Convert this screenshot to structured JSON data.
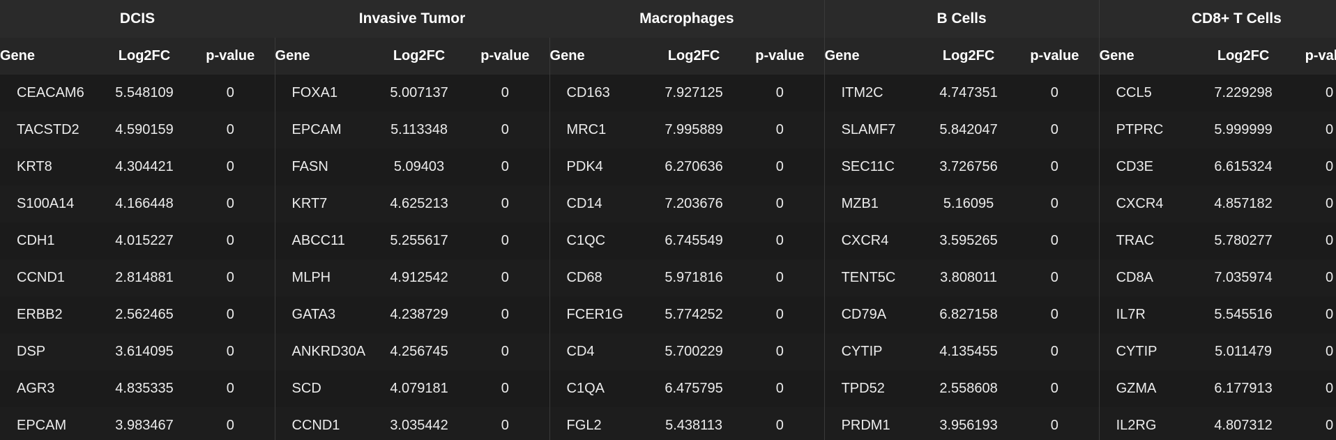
{
  "column_labels": {
    "gene": "Gene",
    "log2fc": "Log2FC",
    "pvalue": "p-value"
  },
  "groups": [
    {
      "name": "DCIS",
      "rows": [
        {
          "gene": "CEACAM6",
          "log2fc": "5.548109",
          "pvalue": "0"
        },
        {
          "gene": "TACSTD2",
          "log2fc": "4.590159",
          "pvalue": "0"
        },
        {
          "gene": "KRT8",
          "log2fc": "4.304421",
          "pvalue": "0"
        },
        {
          "gene": "S100A14",
          "log2fc": "4.166448",
          "pvalue": "0"
        },
        {
          "gene": "CDH1",
          "log2fc": "4.015227",
          "pvalue": "0"
        },
        {
          "gene": "CCND1",
          "log2fc": "2.814881",
          "pvalue": "0"
        },
        {
          "gene": "ERBB2",
          "log2fc": "2.562465",
          "pvalue": "0"
        },
        {
          "gene": "DSP",
          "log2fc": "3.614095",
          "pvalue": "0"
        },
        {
          "gene": "AGR3",
          "log2fc": "4.835335",
          "pvalue": "0"
        },
        {
          "gene": "EPCAM",
          "log2fc": "3.983467",
          "pvalue": "0"
        }
      ]
    },
    {
      "name": "Invasive Tumor",
      "rows": [
        {
          "gene": "FOXA1",
          "log2fc": "5.007137",
          "pvalue": "0"
        },
        {
          "gene": "EPCAM",
          "log2fc": "5.113348",
          "pvalue": "0"
        },
        {
          "gene": "FASN",
          "log2fc": "5.09403",
          "pvalue": "0"
        },
        {
          "gene": "KRT7",
          "log2fc": "4.625213",
          "pvalue": "0"
        },
        {
          "gene": "ABCC11",
          "log2fc": "5.255617",
          "pvalue": "0"
        },
        {
          "gene": "MLPH",
          "log2fc": "4.912542",
          "pvalue": "0"
        },
        {
          "gene": "GATA3",
          "log2fc": "4.238729",
          "pvalue": "0"
        },
        {
          "gene": "ANKRD30A",
          "log2fc": "4.256745",
          "pvalue": "0"
        },
        {
          "gene": "SCD",
          "log2fc": "4.079181",
          "pvalue": "0"
        },
        {
          "gene": "CCND1",
          "log2fc": "3.035442",
          "pvalue": "0"
        }
      ]
    },
    {
      "name": "Macrophages",
      "rows": [
        {
          "gene": "CD163",
          "log2fc": "7.927125",
          "pvalue": "0"
        },
        {
          "gene": "MRC1",
          "log2fc": "7.995889",
          "pvalue": "0"
        },
        {
          "gene": "PDK4",
          "log2fc": "6.270636",
          "pvalue": "0"
        },
        {
          "gene": "CD14",
          "log2fc": "7.203676",
          "pvalue": "0"
        },
        {
          "gene": "C1QC",
          "log2fc": "6.745549",
          "pvalue": "0"
        },
        {
          "gene": "CD68",
          "log2fc": "5.971816",
          "pvalue": "0"
        },
        {
          "gene": "FCER1G",
          "log2fc": "5.774252",
          "pvalue": "0"
        },
        {
          "gene": "CD4",
          "log2fc": "5.700229",
          "pvalue": "0"
        },
        {
          "gene": "C1QA",
          "log2fc": "6.475795",
          "pvalue": "0"
        },
        {
          "gene": "FGL2",
          "log2fc": "5.438113",
          "pvalue": "0"
        }
      ]
    },
    {
      "name": "B Cells",
      "rows": [
        {
          "gene": "ITM2C",
          "log2fc": "4.747351",
          "pvalue": "0"
        },
        {
          "gene": "SLAMF7",
          "log2fc": "5.842047",
          "pvalue": "0"
        },
        {
          "gene": "SEC11C",
          "log2fc": "3.726756",
          "pvalue": "0"
        },
        {
          "gene": "MZB1",
          "log2fc": "5.16095",
          "pvalue": "0"
        },
        {
          "gene": "CXCR4",
          "log2fc": "3.595265",
          "pvalue": "0"
        },
        {
          "gene": "TENT5C",
          "log2fc": "3.808011",
          "pvalue": "0"
        },
        {
          "gene": "CD79A",
          "log2fc": "6.827158",
          "pvalue": "0"
        },
        {
          "gene": "CYTIP",
          "log2fc": "4.135455",
          "pvalue": "0"
        },
        {
          "gene": "TPD52",
          "log2fc": "2.558608",
          "pvalue": "0"
        },
        {
          "gene": "PRDM1",
          "log2fc": "3.956193",
          "pvalue": "0"
        }
      ]
    },
    {
      "name": "CD8+ T Cells",
      "rows": [
        {
          "gene": "CCL5",
          "log2fc": "7.229298",
          "pvalue": "0"
        },
        {
          "gene": "PTPRC",
          "log2fc": "5.999999",
          "pvalue": "0"
        },
        {
          "gene": "CD3E",
          "log2fc": "6.615324",
          "pvalue": "0"
        },
        {
          "gene": "CXCR4",
          "log2fc": "4.857182",
          "pvalue": "0"
        },
        {
          "gene": "TRAC",
          "log2fc": "5.780277",
          "pvalue": "0"
        },
        {
          "gene": "CD8A",
          "log2fc": "7.035974",
          "pvalue": "0"
        },
        {
          "gene": "IL7R",
          "log2fc": "5.545516",
          "pvalue": "0"
        },
        {
          "gene": "CYTIP",
          "log2fc": "5.011479",
          "pvalue": "0"
        },
        {
          "gene": "GZMA",
          "log2fc": "6.177913",
          "pvalue": "0"
        },
        {
          "gene": "IL2RG",
          "log2fc": "4.807312",
          "pvalue": "0"
        }
      ]
    }
  ]
}
